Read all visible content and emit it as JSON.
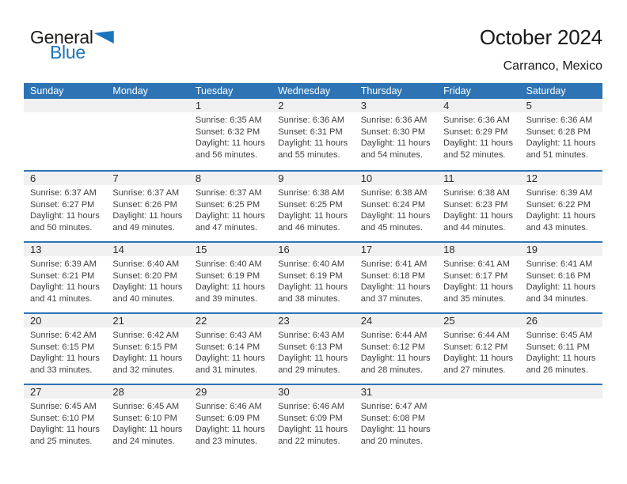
{
  "logo": {
    "line1": "General",
    "line2": "Blue"
  },
  "title": "October 2024",
  "subtitle": "Carranco, Mexico",
  "colors": {
    "header_blue": "#2e74b5",
    "band_gray": "#f0f0f0",
    "logo_blue": "#1b75bc"
  },
  "weekday_headers": [
    "Sunday",
    "Monday",
    "Tuesday",
    "Wednesday",
    "Thursday",
    "Friday",
    "Saturday"
  ],
  "weeks": [
    [
      null,
      null,
      {
        "day": "1",
        "sunrise": "Sunrise: 6:35 AM",
        "sunset": "Sunset: 6:32 PM",
        "daylight": "Daylight: 11 hours and 56 minutes."
      },
      {
        "day": "2",
        "sunrise": "Sunrise: 6:36 AM",
        "sunset": "Sunset: 6:31 PM",
        "daylight": "Daylight: 11 hours and 55 minutes."
      },
      {
        "day": "3",
        "sunrise": "Sunrise: 6:36 AM",
        "sunset": "Sunset: 6:30 PM",
        "daylight": "Daylight: 11 hours and 54 minutes."
      },
      {
        "day": "4",
        "sunrise": "Sunrise: 6:36 AM",
        "sunset": "Sunset: 6:29 PM",
        "daylight": "Daylight: 11 hours and 52 minutes."
      },
      {
        "day": "5",
        "sunrise": "Sunrise: 6:36 AM",
        "sunset": "Sunset: 6:28 PM",
        "daylight": "Daylight: 11 hours and 51 minutes."
      }
    ],
    [
      {
        "day": "6",
        "sunrise": "Sunrise: 6:37 AM",
        "sunset": "Sunset: 6:27 PM",
        "daylight": "Daylight: 11 hours and 50 minutes."
      },
      {
        "day": "7",
        "sunrise": "Sunrise: 6:37 AM",
        "sunset": "Sunset: 6:26 PM",
        "daylight": "Daylight: 11 hours and 49 minutes."
      },
      {
        "day": "8",
        "sunrise": "Sunrise: 6:37 AM",
        "sunset": "Sunset: 6:25 PM",
        "daylight": "Daylight: 11 hours and 47 minutes."
      },
      {
        "day": "9",
        "sunrise": "Sunrise: 6:38 AM",
        "sunset": "Sunset: 6:25 PM",
        "daylight": "Daylight: 11 hours and 46 minutes."
      },
      {
        "day": "10",
        "sunrise": "Sunrise: 6:38 AM",
        "sunset": "Sunset: 6:24 PM",
        "daylight": "Daylight: 11 hours and 45 minutes."
      },
      {
        "day": "11",
        "sunrise": "Sunrise: 6:38 AM",
        "sunset": "Sunset: 6:23 PM",
        "daylight": "Daylight: 11 hours and 44 minutes."
      },
      {
        "day": "12",
        "sunrise": "Sunrise: 6:39 AM",
        "sunset": "Sunset: 6:22 PM",
        "daylight": "Daylight: 11 hours and 43 minutes."
      }
    ],
    [
      {
        "day": "13",
        "sunrise": "Sunrise: 6:39 AM",
        "sunset": "Sunset: 6:21 PM",
        "daylight": "Daylight: 11 hours and 41 minutes."
      },
      {
        "day": "14",
        "sunrise": "Sunrise: 6:40 AM",
        "sunset": "Sunset: 6:20 PM",
        "daylight": "Daylight: 11 hours and 40 minutes."
      },
      {
        "day": "15",
        "sunrise": "Sunrise: 6:40 AM",
        "sunset": "Sunset: 6:19 PM",
        "daylight": "Daylight: 11 hours and 39 minutes."
      },
      {
        "day": "16",
        "sunrise": "Sunrise: 6:40 AM",
        "sunset": "Sunset: 6:19 PM",
        "daylight": "Daylight: 11 hours and 38 minutes."
      },
      {
        "day": "17",
        "sunrise": "Sunrise: 6:41 AM",
        "sunset": "Sunset: 6:18 PM",
        "daylight": "Daylight: 11 hours and 37 minutes."
      },
      {
        "day": "18",
        "sunrise": "Sunrise: 6:41 AM",
        "sunset": "Sunset: 6:17 PM",
        "daylight": "Daylight: 11 hours and 35 minutes."
      },
      {
        "day": "19",
        "sunrise": "Sunrise: 6:41 AM",
        "sunset": "Sunset: 6:16 PM",
        "daylight": "Daylight: 11 hours and 34 minutes."
      }
    ],
    [
      {
        "day": "20",
        "sunrise": "Sunrise: 6:42 AM",
        "sunset": "Sunset: 6:15 PM",
        "daylight": "Daylight: 11 hours and 33 minutes."
      },
      {
        "day": "21",
        "sunrise": "Sunrise: 6:42 AM",
        "sunset": "Sunset: 6:15 PM",
        "daylight": "Daylight: 11 hours and 32 minutes."
      },
      {
        "day": "22",
        "sunrise": "Sunrise: 6:43 AM",
        "sunset": "Sunset: 6:14 PM",
        "daylight": "Daylight: 11 hours and 31 minutes."
      },
      {
        "day": "23",
        "sunrise": "Sunrise: 6:43 AM",
        "sunset": "Sunset: 6:13 PM",
        "daylight": "Daylight: 11 hours and 29 minutes."
      },
      {
        "day": "24",
        "sunrise": "Sunrise: 6:44 AM",
        "sunset": "Sunset: 6:12 PM",
        "daylight": "Daylight: 11 hours and 28 minutes."
      },
      {
        "day": "25",
        "sunrise": "Sunrise: 6:44 AM",
        "sunset": "Sunset: 6:12 PM",
        "daylight": "Daylight: 11 hours and 27 minutes."
      },
      {
        "day": "26",
        "sunrise": "Sunrise: 6:45 AM",
        "sunset": "Sunset: 6:11 PM",
        "daylight": "Daylight: 11 hours and 26 minutes."
      }
    ],
    [
      {
        "day": "27",
        "sunrise": "Sunrise: 6:45 AM",
        "sunset": "Sunset: 6:10 PM",
        "daylight": "Daylight: 11 hours and 25 minutes."
      },
      {
        "day": "28",
        "sunrise": "Sunrise: 6:45 AM",
        "sunset": "Sunset: 6:10 PM",
        "daylight": "Daylight: 11 hours and 24 minutes."
      },
      {
        "day": "29",
        "sunrise": "Sunrise: 6:46 AM",
        "sunset": "Sunset: 6:09 PM",
        "daylight": "Daylight: 11 hours and 23 minutes."
      },
      {
        "day": "30",
        "sunrise": "Sunrise: 6:46 AM",
        "sunset": "Sunset: 6:09 PM",
        "daylight": "Daylight: 11 hours and 22 minutes."
      },
      {
        "day": "31",
        "sunrise": "Sunrise: 6:47 AM",
        "sunset": "Sunset: 6:08 PM",
        "daylight": "Daylight: 11 hours and 20 minutes."
      },
      null,
      null
    ]
  ]
}
